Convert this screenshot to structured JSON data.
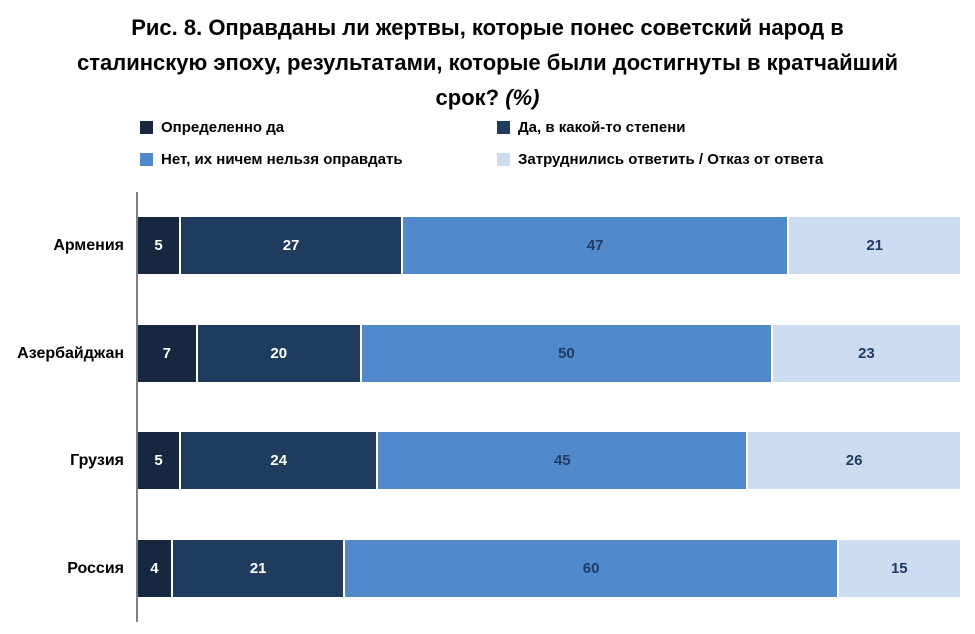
{
  "header": {
    "title_main": "Рис. 8. Оправданы ли жертвы, которые понес советский народ в сталинскую эпоху, результатами, которые были достигнуты в кратчайший срок?",
    "title_percent": "(%)"
  },
  "colors": {
    "background": "#FFFFFF",
    "title_text": "#000000",
    "axis_line": "#808080",
    "segment_separator": "#FFFFFF"
  },
  "chart_data": {
    "type": "bar",
    "orientation": "horizontal",
    "stacked": true,
    "title": "Рис. 8. Оправданы ли жертвы, которые понес советский народ в сталинскую эпоху, результатами, которые были достигнуты в кратчайший срок? (%)",
    "unit": "%",
    "xlim": [
      0,
      100
    ],
    "grid": false,
    "legend_position": "top",
    "value_labels": true,
    "categories": [
      "Армения",
      "Азербайджан",
      "Грузия",
      "Россия"
    ],
    "series": [
      {
        "name": "Определенно да",
        "color": "#17273F",
        "label_color": "#FFFFFF",
        "values": [
          5,
          7,
          5,
          4
        ]
      },
      {
        "name": "Да, в какой-то степени",
        "color": "#1F3C5F",
        "label_color": "#FFFFFF",
        "values": [
          27,
          20,
          24,
          21
        ]
      },
      {
        "name": "Нет, их ничем нельзя оправдать",
        "color": "#5189CB",
        "label_color": "#1F3A64",
        "values": [
          47,
          50,
          45,
          60
        ]
      },
      {
        "name": "Затруднились ответить / Отказ от ответа",
        "color": "#CDDCF1",
        "label_color": "#1F3A64",
        "values": [
          21,
          23,
          26,
          15
        ]
      }
    ]
  }
}
